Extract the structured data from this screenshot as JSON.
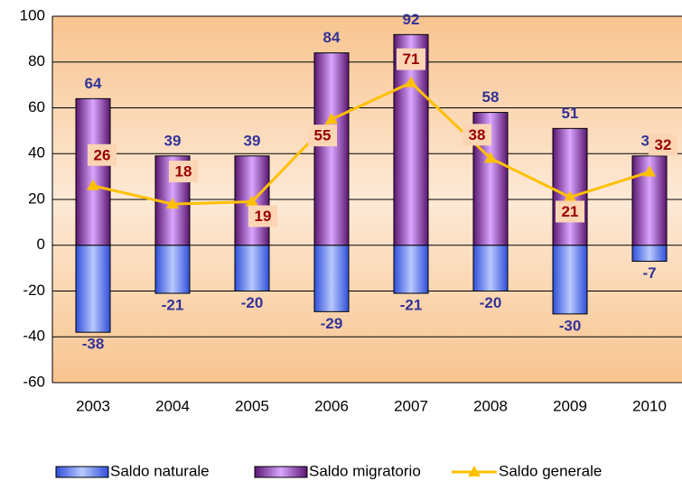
{
  "chart_data": {
    "type": "bar",
    "categories": [
      "2003",
      "2004",
      "2005",
      "2006",
      "2007",
      "2008",
      "2009",
      "2010"
    ],
    "series": [
      {
        "name": "Saldo naturale",
        "type": "bar",
        "color": "#3a5fe8",
        "values": [
          -38,
          -21,
          -20,
          -29,
          -21,
          -20,
          -30,
          -7
        ]
      },
      {
        "name": "Saldo migratorio",
        "type": "bar",
        "color": "#7a2e9a",
        "values": [
          64,
          39,
          39,
          84,
          92,
          58,
          51,
          39
        ]
      },
      {
        "name": "Saldo generale",
        "type": "line",
        "color": "#ffc000",
        "values": [
          26,
          18,
          19,
          55,
          71,
          38,
          21,
          32
        ]
      }
    ],
    "ylim": [
      -60,
      100
    ],
    "yticks": [
      -60,
      -40,
      -20,
      0,
      20,
      40,
      60,
      80,
      100
    ],
    "grid": true,
    "legend": "bottom"
  }
}
